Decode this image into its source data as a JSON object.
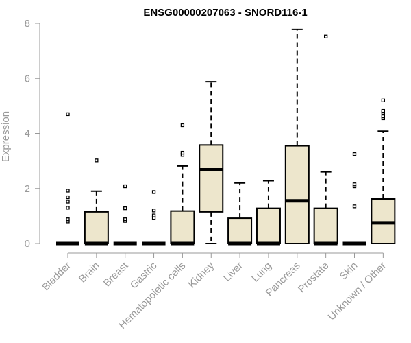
{
  "chart_data": {
    "type": "box",
    "title": "ENSG00000207063 - SNORD116-1",
    "xlabel": "",
    "ylabel": "Expression",
    "ylim": [
      0,
      8
    ],
    "yticks": [
      0,
      2,
      4,
      6,
      8
    ],
    "grid": false,
    "colors": {
      "box_fill": "#ede6cc",
      "stroke": "#000000",
      "axis": "#999999"
    },
    "categories": [
      "Bladder",
      "Brain",
      "Breast",
      "Gastric",
      "Hematopoietic cells",
      "Kidney",
      "Liver",
      "Lung",
      "Pancreas",
      "Prostate",
      "Skin",
      "Unknown / Other"
    ],
    "boxes": [
      {
        "q1": 0,
        "median": 0,
        "q3": 0,
        "whisker_low": 0,
        "whisker_high": 0,
        "outliers": [
          0.8,
          0.88,
          1.3,
          1.52,
          1.68,
          1.92,
          4.7
        ]
      },
      {
        "q1": 0,
        "median": 0,
        "q3": 1.15,
        "whisker_low": 0,
        "whisker_high": 1.9,
        "outliers": [
          3.02
        ]
      },
      {
        "q1": 0,
        "median": 0,
        "q3": 0,
        "whisker_low": 0,
        "whisker_high": 0,
        "outliers": [
          0.82,
          0.88,
          1.28,
          2.08
        ]
      },
      {
        "q1": 0,
        "median": 0,
        "q3": 0,
        "whisker_low": 0,
        "whisker_high": 0,
        "outliers": [
          0.93,
          1.02,
          1.2,
          1.87
        ]
      },
      {
        "q1": 0,
        "median": 0,
        "q3": 1.18,
        "whisker_low": 0,
        "whisker_high": 2.82,
        "outliers": [
          3.22,
          3.3,
          4.3
        ]
      },
      {
        "q1": 1.15,
        "median": 2.68,
        "q3": 3.58,
        "whisker_low": 0,
        "whisker_high": 5.88,
        "outliers": []
      },
      {
        "q1": 0,
        "median": 0,
        "q3": 0.92,
        "whisker_low": 0,
        "whisker_high": 2.2,
        "outliers": []
      },
      {
        "q1": 0,
        "median": 0,
        "q3": 1.28,
        "whisker_low": 0,
        "whisker_high": 2.28,
        "outliers": []
      },
      {
        "q1": 0,
        "median": 1.55,
        "q3": 3.55,
        "whisker_low": 0,
        "whisker_high": 7.78,
        "outliers": []
      },
      {
        "q1": 0,
        "median": 0,
        "q3": 1.28,
        "whisker_low": 0,
        "whisker_high": 2.6,
        "outliers": [
          7.52
        ]
      },
      {
        "q1": 0,
        "median": 0,
        "q3": 0,
        "whisker_low": 0,
        "whisker_high": 0,
        "outliers": [
          1.35,
          2.08,
          2.15,
          3.25
        ]
      },
      {
        "q1": 0,
        "median": 0.75,
        "q3": 1.62,
        "whisker_low": 0,
        "whisker_high": 4.08,
        "outliers": [
          4.55,
          4.62,
          4.75,
          4.82,
          5.2
        ]
      }
    ]
  }
}
